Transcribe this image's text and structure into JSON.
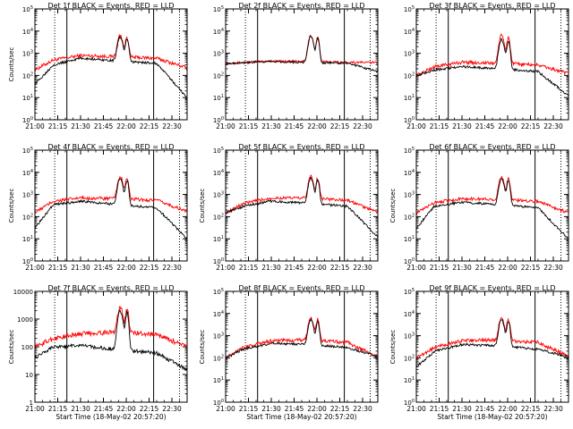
{
  "chart_data": [
    {
      "type": "line",
      "title": "Det 1f BLACK = Events, RED = LLD",
      "xlabel": "",
      "ylabel": "Counts/sec",
      "scale": "log",
      "ylim": [
        1,
        100000
      ],
      "yticks": [
        {
          "v": 1,
          "t": "10",
          "e": "0"
        },
        {
          "v": 10,
          "t": "10",
          "e": "1"
        },
        {
          "v": 100,
          "t": "10",
          "e": "2"
        },
        {
          "v": 1000,
          "t": "10",
          "e": "3"
        },
        {
          "v": 10000,
          "t": "10",
          "e": "4"
        },
        {
          "v": 100000,
          "t": "10",
          "e": "5"
        }
      ],
      "xticks": [
        "21:00",
        "21:15",
        "21:30",
        "21:45",
        "22:00",
        "22:15",
        "22:30"
      ],
      "markers": {
        "dotted": [
          "21:13",
          "22:35"
        ],
        "solid": [
          "21:21",
          "22:18"
        ]
      },
      "series": [
        {
          "color": "#ff0000",
          "baseline": [
            [
              0,
              180
            ],
            [
              0.12,
              500
            ],
            [
              0.3,
              800
            ],
            [
              0.55,
              700
            ],
            [
              0.8,
              600
            ],
            [
              1,
              220
            ]
          ],
          "peak": 6000,
          "noise": 0.18
        },
        {
          "color": "#000000",
          "baseline": [
            [
              0,
              40
            ],
            [
              0.12,
              300
            ],
            [
              0.3,
              600
            ],
            [
              0.55,
              450
            ],
            [
              0.8,
              350
            ],
            [
              1,
              10
            ]
          ],
          "peak": 5000,
          "noise": 0.12
        }
      ]
    },
    {
      "type": "line",
      "title": "Det 2f BLACK = Events, RED = LLD",
      "xlabel": "",
      "ylabel": "",
      "scale": "log",
      "ylim": [
        1,
        100000
      ],
      "yticks": [
        {
          "v": 1,
          "t": "10",
          "e": "0"
        },
        {
          "v": 10,
          "t": "10",
          "e": "1"
        },
        {
          "v": 100,
          "t": "10",
          "e": "2"
        },
        {
          "v": 1000,
          "t": "10",
          "e": "3"
        },
        {
          "v": 10000,
          "t": "10",
          "e": "4"
        },
        {
          "v": 100000,
          "t": "10",
          "e": "5"
        }
      ],
      "xticks": [
        "21:00",
        "21:15",
        "21:30",
        "21:45",
        "22:00",
        "22:15",
        "22:30"
      ],
      "markers": {
        "dotted": [
          "21:13",
          "22:35"
        ],
        "solid": [
          "21:21",
          "22:18"
        ]
      },
      "series": [
        {
          "color": "#ff0000",
          "baseline": [
            [
              0,
              350
            ],
            [
              0.3,
              450
            ],
            [
              0.55,
              420
            ],
            [
              0.8,
              400
            ],
            [
              1,
              380
            ]
          ],
          "peak": 6000,
          "noise": 0.12
        },
        {
          "color": "#000000",
          "baseline": [
            [
              0,
              350
            ],
            [
              0.3,
              430
            ],
            [
              0.55,
              380
            ],
            [
              0.8,
              360
            ],
            [
              1,
              150
            ]
          ],
          "peak": 5500,
          "noise": 0.1
        }
      ]
    },
    {
      "type": "line",
      "title": "Det 3f BLACK = Events, RED = LLD",
      "xlabel": "",
      "ylabel": "",
      "scale": "log",
      "ylim": [
        1,
        100000
      ],
      "yticks": [
        {
          "v": 1,
          "t": "10",
          "e": "0"
        },
        {
          "v": 10,
          "t": "10",
          "e": "1"
        },
        {
          "v": 100,
          "t": "10",
          "e": "2"
        },
        {
          "v": 1000,
          "t": "10",
          "e": "3"
        },
        {
          "v": 10000,
          "t": "10",
          "e": "4"
        },
        {
          "v": 100000,
          "t": "10",
          "e": "5"
        }
      ],
      "xticks": [
        "21:00",
        "21:15",
        "21:30",
        "21:45",
        "22:00",
        "22:15",
        "22:30"
      ],
      "markers": {
        "dotted": [
          "21:13",
          "22:35"
        ],
        "solid": [
          "21:21",
          "22:18"
        ]
      },
      "series": [
        {
          "color": "#ff0000",
          "baseline": [
            [
              0,
              100
            ],
            [
              0.12,
              250
            ],
            [
              0.3,
              400
            ],
            [
              0.55,
              350
            ],
            [
              0.8,
              300
            ],
            [
              1,
              120
            ]
          ],
          "peak": 6000,
          "noise": 0.18
        },
        {
          "color": "#000000",
          "baseline": [
            [
              0,
              100
            ],
            [
              0.12,
              180
            ],
            [
              0.3,
              250
            ],
            [
              0.55,
              200
            ],
            [
              0.8,
              150
            ],
            [
              1,
              12
            ]
          ],
          "peak": 4000,
          "noise": 0.12
        }
      ]
    },
    {
      "type": "line",
      "title": "Det 4f BLACK = Events, RED = LLD",
      "xlabel": "",
      "ylabel": "Counts/sec",
      "scale": "log",
      "ylim": [
        1,
        100000
      ],
      "yticks": [
        {
          "v": 1,
          "t": "10",
          "e": "0"
        },
        {
          "v": 10,
          "t": "10",
          "e": "1"
        },
        {
          "v": 100,
          "t": "10",
          "e": "2"
        },
        {
          "v": 1000,
          "t": "10",
          "e": "3"
        },
        {
          "v": 10000,
          "t": "10",
          "e": "4"
        },
        {
          "v": 100000,
          "t": "10",
          "e": "5"
        }
      ],
      "xticks": [
        "21:00",
        "21:15",
        "21:30",
        "21:45",
        "22:00",
        "22:15",
        "22:30"
      ],
      "markers": {
        "dotted": [
          "21:13",
          "22:35"
        ],
        "solid": [
          "21:21",
          "22:18"
        ]
      },
      "series": [
        {
          "color": "#ff0000",
          "baseline": [
            [
              0,
              150
            ],
            [
              0.12,
              500
            ],
            [
              0.3,
              700
            ],
            [
              0.55,
              650
            ],
            [
              0.8,
              550
            ],
            [
              1,
              170
            ]
          ],
          "peak": 6000,
          "noise": 0.18
        },
        {
          "color": "#000000",
          "baseline": [
            [
              0,
              30
            ],
            [
              0.12,
              350
            ],
            [
              0.3,
              500
            ],
            [
              0.55,
              350
            ],
            [
              0.8,
              250
            ],
            [
              1,
              10
            ]
          ],
          "peak": 5000,
          "noise": 0.12
        }
      ]
    },
    {
      "type": "line",
      "title": "Det 5f BLACK = Events, RED = LLD",
      "xlabel": "",
      "ylabel": "Counts/sec",
      "scale": "log",
      "ylim": [
        1,
        100000
      ],
      "yticks": [
        {
          "v": 1,
          "t": "10",
          "e": "0"
        },
        {
          "v": 10,
          "t": "10",
          "e": "1"
        },
        {
          "v": 100,
          "t": "10",
          "e": "2"
        },
        {
          "v": 1000,
          "t": "10",
          "e": "3"
        },
        {
          "v": 10000,
          "t": "10",
          "e": "4"
        },
        {
          "v": 100000,
          "t": "10",
          "e": "5"
        }
      ],
      "xticks": [
        "21:00",
        "21:15",
        "21:30",
        "21:45",
        "22:00",
        "22:15",
        "22:30"
      ],
      "markers": {
        "dotted": [
          "21:13",
          "22:35"
        ],
        "solid": [
          "21:21",
          "22:18"
        ]
      },
      "series": [
        {
          "color": "#ff0000",
          "baseline": [
            [
              0,
              150
            ],
            [
              0.12,
              400
            ],
            [
              0.3,
              700
            ],
            [
              0.55,
              700
            ],
            [
              0.8,
              550
            ],
            [
              1,
              160
            ]
          ],
          "peak": 6000,
          "noise": 0.16
        },
        {
          "color": "#000000",
          "baseline": [
            [
              0,
              150
            ],
            [
              0.12,
              300
            ],
            [
              0.3,
              500
            ],
            [
              0.55,
              400
            ],
            [
              0.8,
              300
            ],
            [
              1,
              12
            ]
          ],
          "peak": 5000,
          "noise": 0.12
        }
      ]
    },
    {
      "type": "line",
      "title": "Det 6f BLACK = Events, RED = LLD",
      "xlabel": "",
      "ylabel": "Counts/sec",
      "scale": "log",
      "ylim": [
        1,
        100000
      ],
      "yticks": [
        {
          "v": 1,
          "t": "10",
          "e": "0"
        },
        {
          "v": 10,
          "t": "10",
          "e": "1"
        },
        {
          "v": 100,
          "t": "10",
          "e": "2"
        },
        {
          "v": 1000,
          "t": "10",
          "e": "3"
        },
        {
          "v": 10000,
          "t": "10",
          "e": "4"
        },
        {
          "v": 100000,
          "t": "10",
          "e": "5"
        }
      ],
      "xticks": [
        "21:00",
        "21:15",
        "21:30",
        "21:45",
        "22:00",
        "22:15",
        "22:30"
      ],
      "markers": {
        "dotted": [
          "21:13",
          "22:35"
        ],
        "solid": [
          "21:21",
          "22:18"
        ]
      },
      "series": [
        {
          "color": "#ff0000",
          "baseline": [
            [
              0,
              140
            ],
            [
              0.12,
              450
            ],
            [
              0.3,
              650
            ],
            [
              0.55,
              600
            ],
            [
              0.8,
              500
            ],
            [
              1,
              150
            ]
          ],
          "peak": 6000,
          "noise": 0.16
        },
        {
          "color": "#000000",
          "baseline": [
            [
              0,
              30
            ],
            [
              0.12,
              300
            ],
            [
              0.3,
              450
            ],
            [
              0.55,
              350
            ],
            [
              0.8,
              250
            ],
            [
              1,
              10
            ]
          ],
          "peak": 5000,
          "noise": 0.12
        }
      ]
    },
    {
      "type": "line",
      "title": "Det 7f BLACK = Events, RED = LLD",
      "xlabel": "Start Time (18-May-02 20:57:20)",
      "ylabel": "Counts/sec",
      "scale": "log",
      "ylim": [
        1,
        10000
      ],
      "yticks": [
        {
          "v": 1,
          "t": "1",
          "e": ""
        },
        {
          "v": 10,
          "t": "10",
          "e": ""
        },
        {
          "v": 100,
          "t": "100",
          "e": ""
        },
        {
          "v": 1000,
          "t": "1000",
          "e": ""
        },
        {
          "v": 10000,
          "t": "10000",
          "e": ""
        }
      ],
      "xticks": [
        "21:00",
        "21:15",
        "21:30",
        "21:45",
        "22:00",
        "22:15",
        "22:30"
      ],
      "markers": {
        "dotted": [
          "21:13",
          "22:35"
        ],
        "solid": [
          "21:21",
          "22:18"
        ]
      },
      "series": [
        {
          "color": "#ff0000",
          "baseline": [
            [
              0,
              100
            ],
            [
              0.12,
              200
            ],
            [
              0.3,
              300
            ],
            [
              0.55,
              350
            ],
            [
              0.8,
              280
            ],
            [
              1,
              100
            ]
          ],
          "peak": 2500,
          "noise": 0.2
        },
        {
          "color": "#000000",
          "baseline": [
            [
              0,
              40
            ],
            [
              0.12,
              100
            ],
            [
              0.3,
              110
            ],
            [
              0.55,
              80
            ],
            [
              0.8,
              60
            ],
            [
              1,
              15
            ]
          ],
          "peak": 2000,
          "noise": 0.15
        }
      ]
    },
    {
      "type": "line",
      "title": "Det 8f BLACK = Events, RED = LLD",
      "xlabel": "Start Time (18-May-02 20:57:20)",
      "ylabel": "Counts/sec",
      "scale": "log",
      "ylim": [
        1,
        100000
      ],
      "yticks": [
        {
          "v": 1,
          "t": "10",
          "e": "0"
        },
        {
          "v": 10,
          "t": "10",
          "e": "1"
        },
        {
          "v": 100,
          "t": "10",
          "e": "2"
        },
        {
          "v": 1000,
          "t": "10",
          "e": "3"
        },
        {
          "v": 10000,
          "t": "10",
          "e": "4"
        },
        {
          "v": 100000,
          "t": "10",
          "e": "5"
        }
      ],
      "xticks": [
        "21:00",
        "21:15",
        "21:30",
        "21:45",
        "22:00",
        "22:15",
        "22:30"
      ],
      "markers": {
        "dotted": [
          "21:13",
          "22:35"
        ],
        "solid": [
          "21:21",
          "22:18"
        ]
      },
      "series": [
        {
          "color": "#ff0000",
          "baseline": [
            [
              0,
              100
            ],
            [
              0.12,
              300
            ],
            [
              0.3,
              600
            ],
            [
              0.55,
              650
            ],
            [
              0.8,
              500
            ],
            [
              1,
              110
            ]
          ],
          "peak": 6000,
          "noise": 0.18
        },
        {
          "color": "#000000",
          "baseline": [
            [
              0,
              100
            ],
            [
              0.12,
              250
            ],
            [
              0.3,
              450
            ],
            [
              0.55,
              400
            ],
            [
              0.8,
              300
            ],
            [
              1,
              110
            ]
          ],
          "peak": 5000,
          "noise": 0.12
        }
      ]
    },
    {
      "type": "line",
      "title": "Det 9f BLACK = Events, RED = LLD",
      "xlabel": "Start Time (18-May-02 20:57:20)",
      "ylabel": "Counts/sec",
      "scale": "log",
      "ylim": [
        1,
        100000
      ],
      "yticks": [
        {
          "v": 1,
          "t": "10",
          "e": "0"
        },
        {
          "v": 10,
          "t": "10",
          "e": "1"
        },
        {
          "v": 100,
          "t": "10",
          "e": "2"
        },
        {
          "v": 1000,
          "t": "10",
          "e": "3"
        },
        {
          "v": 10000,
          "t": "10",
          "e": "4"
        },
        {
          "v": 100000,
          "t": "10",
          "e": "5"
        }
      ],
      "xticks": [
        "21:00",
        "21:15",
        "21:30",
        "21:45",
        "22:00",
        "22:15",
        "22:30"
      ],
      "markers": {
        "dotted": [
          "21:13",
          "22:35"
        ],
        "solid": [
          "21:21",
          "22:18"
        ]
      },
      "series": [
        {
          "color": "#ff0000",
          "baseline": [
            [
              0,
              100
            ],
            [
              0.12,
              300
            ],
            [
              0.3,
              600
            ],
            [
              0.55,
              650
            ],
            [
              0.8,
              500
            ],
            [
              1,
              120
            ]
          ],
          "peak": 6000,
          "noise": 0.18
        },
        {
          "color": "#000000",
          "baseline": [
            [
              0,
              40
            ],
            [
              0.12,
              200
            ],
            [
              0.3,
              400
            ],
            [
              0.55,
              350
            ],
            [
              0.8,
              250
            ],
            [
              1,
              110
            ]
          ],
          "peak": 5000,
          "noise": 0.12
        }
      ]
    }
  ]
}
